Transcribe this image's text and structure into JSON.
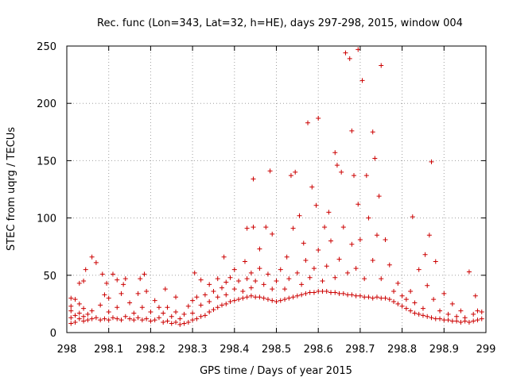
{
  "chart_data": {
    "type": "scatter",
    "title": "Rec. func (Lon=343, Lat=32, h=HE), days 297-298, 2015, window 004",
    "xlabel": "GPS time / Days of year 2015",
    "ylabel": "STEC from uqrg / TECUs",
    "xlim": [
      298,
      299
    ],
    "ylim": [
      0,
      250
    ],
    "xticks": [
      298,
      298.1,
      298.2,
      298.3,
      298.4,
      298.5,
      298.6,
      298.7,
      298.8,
      298.9,
      299
    ],
    "xtick_labels": [
      "298",
      "298.1",
      "298.2",
      "298.3",
      "298.4",
      "298.5",
      "298.6",
      "298.7",
      "298.8",
      "298.9",
      "299"
    ],
    "yticks": [
      0,
      50,
      100,
      150,
      200,
      250
    ],
    "ytick_labels": [
      "0",
      "50",
      "100",
      "150",
      "200",
      "250"
    ],
    "grid": true,
    "marker": "+",
    "color": "#cc0000",
    "points": [
      [
        298.01,
        8
      ],
      [
        298.01,
        13
      ],
      [
        298.01,
        19
      ],
      [
        298.01,
        23
      ],
      [
        298.01,
        30
      ],
      [
        298.02,
        29
      ],
      [
        298.02,
        15
      ],
      [
        298.02,
        9
      ],
      [
        298.03,
        12
      ],
      [
        298.03,
        17
      ],
      [
        298.03,
        25
      ],
      [
        298.03,
        43
      ],
      [
        298.04,
        10
      ],
      [
        298.04,
        14
      ],
      [
        298.04,
        21
      ],
      [
        298.04,
        45
      ],
      [
        298.045,
        55
      ],
      [
        298.05,
        11
      ],
      [
        298.05,
        16
      ],
      [
        298.06,
        12
      ],
      [
        298.06,
        19
      ],
      [
        298.06,
        66
      ],
      [
        298.07,
        61
      ],
      [
        298.07,
        13
      ],
      [
        298.08,
        11
      ],
      [
        298.08,
        24
      ],
      [
        298.085,
        51
      ],
      [
        298.09,
        12
      ],
      [
        298.09,
        33
      ],
      [
        298.095,
        43
      ],
      [
        298.1,
        11
      ],
      [
        298.1,
        18
      ],
      [
        298.1,
        30
      ],
      [
        298.11,
        13
      ],
      [
        298.11,
        51
      ],
      [
        298.12,
        12
      ],
      [
        298.12,
        22
      ],
      [
        298.12,
        46
      ],
      [
        298.13,
        11
      ],
      [
        298.13,
        34
      ],
      [
        298.135,
        42
      ],
      [
        298.14,
        14
      ],
      [
        298.14,
        47
      ],
      [
        298.15,
        12
      ],
      [
        298.15,
        26
      ],
      [
        298.16,
        11
      ],
      [
        298.16,
        17
      ],
      [
        298.17,
        13
      ],
      [
        298.17,
        34
      ],
      [
        298.175,
        47
      ],
      [
        298.18,
        11
      ],
      [
        298.18,
        22
      ],
      [
        298.185,
        51
      ],
      [
        298.19,
        12
      ],
      [
        298.19,
        36
      ],
      [
        298.2,
        10
      ],
      [
        298.2,
        18
      ],
      [
        298.21,
        11
      ],
      [
        298.21,
        28
      ],
      [
        298.22,
        13
      ],
      [
        298.22,
        22
      ],
      [
        298.23,
        9
      ],
      [
        298.23,
        17
      ],
      [
        298.235,
        38
      ],
      [
        298.24,
        10
      ],
      [
        298.24,
        22
      ],
      [
        298.25,
        8
      ],
      [
        298.25,
        14
      ],
      [
        298.26,
        9
      ],
      [
        298.26,
        18
      ],
      [
        298.26,
        31
      ],
      [
        298.27,
        7
      ],
      [
        298.27,
        12
      ],
      [
        298.28,
        8
      ],
      [
        298.28,
        16
      ],
      [
        298.29,
        9
      ],
      [
        298.29,
        23
      ],
      [
        298.3,
        11
      ],
      [
        298.3,
        17
      ],
      [
        298.3,
        28
      ],
      [
        298.305,
        52
      ],
      [
        298.31,
        12
      ],
      [
        298.31,
        31
      ],
      [
        298.32,
        14
      ],
      [
        298.32,
        24
      ],
      [
        298.32,
        46
      ],
      [
        298.33,
        15
      ],
      [
        298.33,
        33
      ],
      [
        298.34,
        18
      ],
      [
        298.34,
        27
      ],
      [
        298.34,
        42
      ],
      [
        298.35,
        20
      ],
      [
        298.35,
        36
      ],
      [
        298.36,
        22
      ],
      [
        298.36,
        31
      ],
      [
        298.36,
        47
      ],
      [
        298.37,
        24
      ],
      [
        298.37,
        39
      ],
      [
        298.375,
        66
      ],
      [
        298.38,
        25
      ],
      [
        298.38,
        33
      ],
      [
        298.38,
        44
      ],
      [
        298.39,
        27
      ],
      [
        298.39,
        48
      ],
      [
        298.4,
        28
      ],
      [
        298.4,
        38
      ],
      [
        298.4,
        55
      ],
      [
        298.41,
        29
      ],
      [
        298.41,
        45
      ],
      [
        298.42,
        30
      ],
      [
        298.42,
        36
      ],
      [
        298.425,
        62
      ],
      [
        298.43,
        31
      ],
      [
        298.43,
        47
      ],
      [
        298.43,
        91
      ],
      [
        298.44,
        32
      ],
      [
        298.44,
        39
      ],
      [
        298.44,
        52
      ],
      [
        298.445,
        92
      ],
      [
        298.445,
        134
      ],
      [
        298.45,
        31
      ],
      [
        298.45,
        45
      ],
      [
        298.46,
        31
      ],
      [
        298.46,
        56
      ],
      [
        298.46,
        73
      ],
      [
        298.47,
        30
      ],
      [
        298.47,
        42
      ],
      [
        298.475,
        92
      ],
      [
        298.48,
        29
      ],
      [
        298.48,
        51
      ],
      [
        298.485,
        141
      ],
      [
        298.49,
        28
      ],
      [
        298.49,
        38
      ],
      [
        298.49,
        86
      ],
      [
        298.5,
        27
      ],
      [
        298.5,
        45
      ],
      [
        298.51,
        28
      ],
      [
        298.51,
        55
      ],
      [
        298.52,
        29
      ],
      [
        298.52,
        38
      ],
      [
        298.525,
        66
      ],
      [
        298.53,
        30
      ],
      [
        298.53,
        47
      ],
      [
        298.535,
        137
      ],
      [
        298.54,
        31
      ],
      [
        298.54,
        91
      ],
      [
        298.545,
        140
      ],
      [
        298.55,
        32
      ],
      [
        298.55,
        52
      ],
      [
        298.555,
        102
      ],
      [
        298.56,
        33
      ],
      [
        298.56,
        42
      ],
      [
        298.565,
        78
      ],
      [
        298.57,
        34
      ],
      [
        298.57,
        63
      ],
      [
        298.575,
        183
      ],
      [
        298.58,
        35
      ],
      [
        298.58,
        48
      ],
      [
        298.585,
        127
      ],
      [
        298.59,
        35
      ],
      [
        298.59,
        56
      ],
      [
        298.595,
        111
      ],
      [
        298.6,
        36
      ],
      [
        298.6,
        72
      ],
      [
        298.6,
        187
      ],
      [
        298.61,
        36
      ],
      [
        298.61,
        45
      ],
      [
        298.615,
        92
      ],
      [
        298.62,
        36
      ],
      [
        298.62,
        58
      ],
      [
        298.625,
        105
      ],
      [
        298.63,
        35
      ],
      [
        298.63,
        80
      ],
      [
        298.64,
        35
      ],
      [
        298.64,
        48
      ],
      [
        298.64,
        157
      ],
      [
        298.645,
        146
      ],
      [
        298.65,
        34
      ],
      [
        298.65,
        64
      ],
      [
        298.655,
        140
      ],
      [
        298.66,
        34
      ],
      [
        298.66,
        92
      ],
      [
        298.665,
        244
      ],
      [
        298.67,
        33
      ],
      [
        298.67,
        52
      ],
      [
        298.675,
        239
      ],
      [
        298.68,
        33
      ],
      [
        298.68,
        77
      ],
      [
        298.68,
        176
      ],
      [
        298.685,
        137
      ],
      [
        298.69,
        32
      ],
      [
        298.69,
        56
      ],
      [
        298.695,
        247
      ],
      [
        298.695,
        112
      ],
      [
        298.7,
        32
      ],
      [
        298.7,
        81
      ],
      [
        298.705,
        220
      ],
      [
        298.71,
        31
      ],
      [
        298.71,
        47
      ],
      [
        298.715,
        137
      ],
      [
        298.72,
        31
      ],
      [
        298.72,
        100
      ],
      [
        298.73,
        30
      ],
      [
        298.73,
        63
      ],
      [
        298.73,
        175
      ],
      [
        298.735,
        152
      ],
      [
        298.74,
        31
      ],
      [
        298.74,
        85
      ],
      [
        298.745,
        119
      ],
      [
        298.75,
        30
      ],
      [
        298.75,
        47
      ],
      [
        298.75,
        233
      ],
      [
        298.76,
        30
      ],
      [
        298.76,
        81
      ],
      [
        298.77,
        29
      ],
      [
        298.77,
        59
      ],
      [
        298.78,
        27
      ],
      [
        298.78,
        36
      ],
      [
        298.79,
        25
      ],
      [
        298.79,
        43
      ],
      [
        298.8,
        23
      ],
      [
        298.8,
        32
      ],
      [
        298.81,
        21
      ],
      [
        298.81,
        29
      ],
      [
        298.82,
        19
      ],
      [
        298.82,
        36
      ],
      [
        298.825,
        101
      ],
      [
        298.83,
        17
      ],
      [
        298.83,
        26
      ],
      [
        298.84,
        16
      ],
      [
        298.84,
        55
      ],
      [
        298.85,
        15
      ],
      [
        298.85,
        21
      ],
      [
        298.855,
        68
      ],
      [
        298.86,
        14
      ],
      [
        298.86,
        41
      ],
      [
        298.865,
        85
      ],
      [
        298.87,
        13
      ],
      [
        298.87,
        149
      ],
      [
        298.875,
        29
      ],
      [
        298.88,
        12
      ],
      [
        298.88,
        62
      ],
      [
        298.89,
        12
      ],
      [
        298.89,
        19
      ],
      [
        298.9,
        11
      ],
      [
        298.9,
        34
      ],
      [
        298.91,
        11
      ],
      [
        298.91,
        16
      ],
      [
        298.92,
        10
      ],
      [
        298.92,
        25
      ],
      [
        298.93,
        10
      ],
      [
        298.93,
        14
      ],
      [
        298.94,
        9
      ],
      [
        298.94,
        19
      ],
      [
        298.95,
        10
      ],
      [
        298.95,
        13
      ],
      [
        298.96,
        9
      ],
      [
        298.96,
        53
      ],
      [
        298.97,
        10
      ],
      [
        298.97,
        16
      ],
      [
        298.975,
        32
      ],
      [
        298.98,
        11
      ],
      [
        298.98,
        19
      ],
      [
        298.99,
        12
      ],
      [
        298.99,
        18
      ]
    ]
  }
}
